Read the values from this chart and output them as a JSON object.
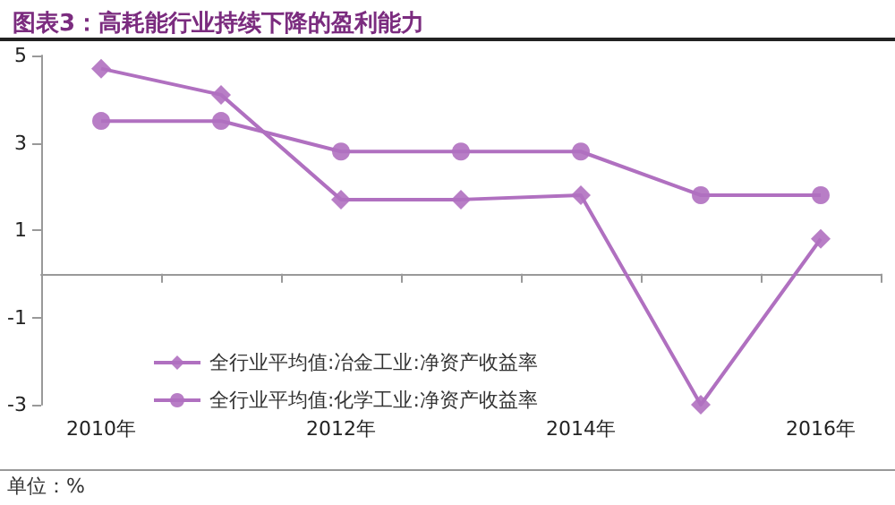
{
  "chart_data": {
    "type": "line",
    "title": "图表3：高耗能行业持续下降的盈利能力",
    "categories": [
      "2010年",
      null,
      "2012年",
      null,
      "2014年",
      null,
      "2016年"
    ],
    "series": [
      {
        "name": "全行业平均值:冶金工业:净资产收益率",
        "color": "#b070c0",
        "marker": "diamond",
        "values": [
          4.7,
          4.1,
          1.7,
          1.7,
          1.8,
          -3.0,
          0.8
        ]
      },
      {
        "name": "全行业平均值:化学工业:净资产收益率",
        "color": "#b070c0",
        "marker": "circle",
        "values": [
          3.5,
          3.5,
          2.8,
          2.8,
          2.8,
          1.8,
          1.8
        ]
      }
    ],
    "ylim": [
      -3,
      5
    ],
    "yticks": [
      5,
      3,
      1,
      -1,
      -3
    ],
    "grid": false,
    "legend": "bottom left",
    "annotations": [
      "单位：%"
    ]
  }
}
